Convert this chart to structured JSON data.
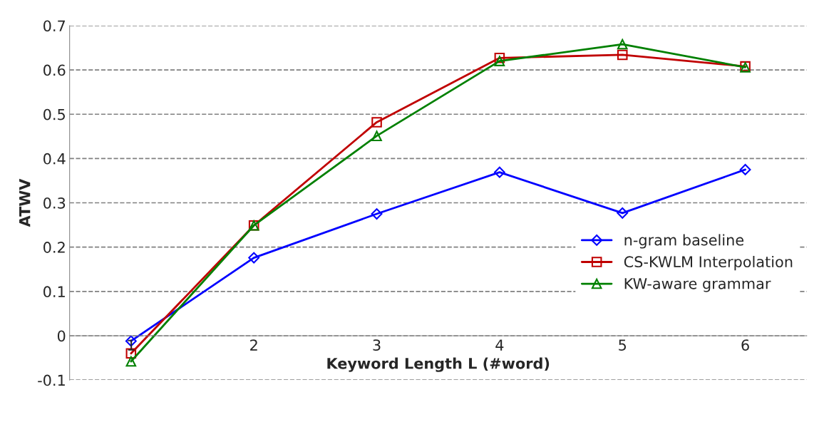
{
  "chart_data": {
    "type": "line",
    "xlabel": "Keyword Length L (#word)",
    "ylabel": "ATWV",
    "categories": [
      "1",
      "2",
      "3",
      "4",
      "5",
      "6"
    ],
    "series": [
      {
        "name": "n-gram baseline",
        "color": "#0000ff",
        "marker": "diamond",
        "values": [
          -0.012,
          0.176,
          0.275,
          0.369,
          0.277,
          0.375
        ]
      },
      {
        "name": "CS-KWLM Interpolation",
        "color": "#c00000",
        "marker": "square",
        "values": [
          -0.04,
          0.249,
          0.482,
          0.627,
          0.634,
          0.608
        ]
      },
      {
        "name": "KW-aware grammar",
        "color": "#008000",
        "marker": "triangle",
        "values": [
          -0.058,
          0.249,
          0.451,
          0.62,
          0.658,
          0.606
        ]
      }
    ],
    "ylim": [
      -0.1,
      0.7
    ],
    "yticks": [
      -0.1,
      0,
      0.1,
      0.2,
      0.3,
      0.4,
      0.5,
      0.6,
      0.7
    ],
    "grid": "y",
    "legend": "right"
  }
}
